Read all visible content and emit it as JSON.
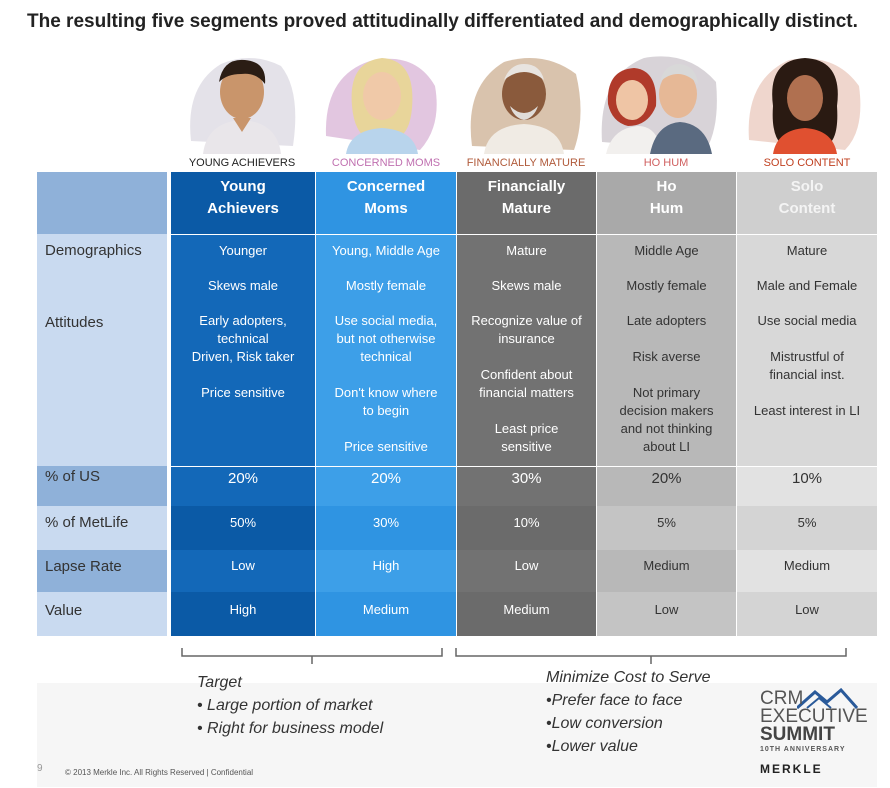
{
  "title": "The resulting five segments proved attitudinally differentiated and demographically distinct.",
  "segments": [
    {
      "caption": "YOUNG ACHIEVERS",
      "caption_color": "#222222",
      "header_l1": "Young",
      "header_l2": "Achievers",
      "bg": "#1368b8",
      "header_bg": "#0b5aa6",
      "text": "#ffffff",
      "photo": "young-man-portrait",
      "demo1": "Younger",
      "demo2": "Skews male",
      "att": [
        "Early adopters,",
        "technical",
        "",
        "Driven, Risk taker",
        "",
        "Price sensitive",
        "",
        ""
      ],
      "us": "20%",
      "metlife": "50%",
      "lapse": "Low",
      "value": "High"
    },
    {
      "caption": "CONCERNED MOMS",
      "caption_color": "#c070b0",
      "header_l1": "Concerned",
      "header_l2": "Moms",
      "bg": "#3d9fe8",
      "header_bg": "#2f94e2",
      "text": "#ffffff",
      "photo": "blonde-woman-portrait",
      "demo1": "Young, Middle Age",
      "demo2": "Mostly female",
      "att": [
        "Use social media,",
        "but not otherwise",
        "technical",
        "",
        "Don't know where",
        "to begin",
        "",
        "Price sensitive"
      ],
      "us": "20%",
      "metlife": "30%",
      "lapse": "High",
      "value": "Medium"
    },
    {
      "caption": "FINANCIALLY MATURE",
      "caption_color": "#b05a3a",
      "header_l1": "Financially",
      "header_l2": "Mature",
      "bg": "#727272",
      "header_bg": "#6b6b6b",
      "text": "#ffffff",
      "photo": "older-man-portrait",
      "demo1": "Mature",
      "demo2": "Skews male",
      "att": [
        "Recognize value of",
        "insurance",
        "",
        "Confident about",
        "financial matters",
        "",
        "Least price",
        "sensitive"
      ],
      "us": "30%",
      "metlife": "10%",
      "lapse": "Low",
      "value": "Medium"
    },
    {
      "caption": "HO HUM",
      "caption_color": "#d06060",
      "header_l1": "Ho",
      "header_l2": "Hum",
      "bg": "#b8b8b8",
      "header_bg": "#a9a9a9",
      "text": "#333333",
      "photo": "older-couple-portrait",
      "demo1": "Middle Age",
      "demo2": "Mostly female",
      "att": [
        "Late adopters",
        "",
        "Risk averse",
        "",
        "Not primary",
        "decision makers",
        "and not thinking",
        "about LI"
      ],
      "us": "20%",
      "metlife": "5%",
      "lapse": "Medium",
      "value": "Low"
    },
    {
      "caption": "SOLO CONTENT",
      "caption_color": "#c04020",
      "header_l1": "Solo",
      "header_l2": "Content",
      "bg": "#d4d4d4",
      "header_bg": "#cfcfcf",
      "text": "#333333",
      "photo": "smiling-woman-portrait",
      "demo1": "Mature",
      "demo2": "Male and Female",
      "att": [
        "Use social  media",
        "",
        "Mistrustful of",
        "financial inst.",
        "",
        "Least interest in LI",
        "",
        ""
      ],
      "us": "10%",
      "metlife": "5%",
      "lapse": "Medium",
      "value": "Low"
    }
  ],
  "row_labels": {
    "demographics": "Demographics",
    "attitudes": "Attitudes",
    "us": "% of US",
    "metlife": "% of MetLife",
    "lapse": "Lapse Rate",
    "value": "Value"
  },
  "target": {
    "heading": "Target",
    "bullets": [
      "• Large portion of market",
      "• Right for business model"
    ]
  },
  "minimize": {
    "heading": "Minimize Cost to Serve",
    "bullets": [
      "•Prefer face to face",
      "•Low conversion",
      "•Lower value"
    ]
  },
  "footer": {
    "page_number": "9",
    "copyright": "© 2013 Merkle Inc. All Rights Reserved  |  Confidential"
  },
  "logo": {
    "line1": "CRM",
    "line2": "EXECUTIVE",
    "line3": "SUMMIT",
    "line4": "10TH ANNIVERSARY",
    "brand": "MERKLE"
  },
  "colors": {
    "label_dark": "#8fb1d9",
    "label_light": "#c9daf0"
  }
}
